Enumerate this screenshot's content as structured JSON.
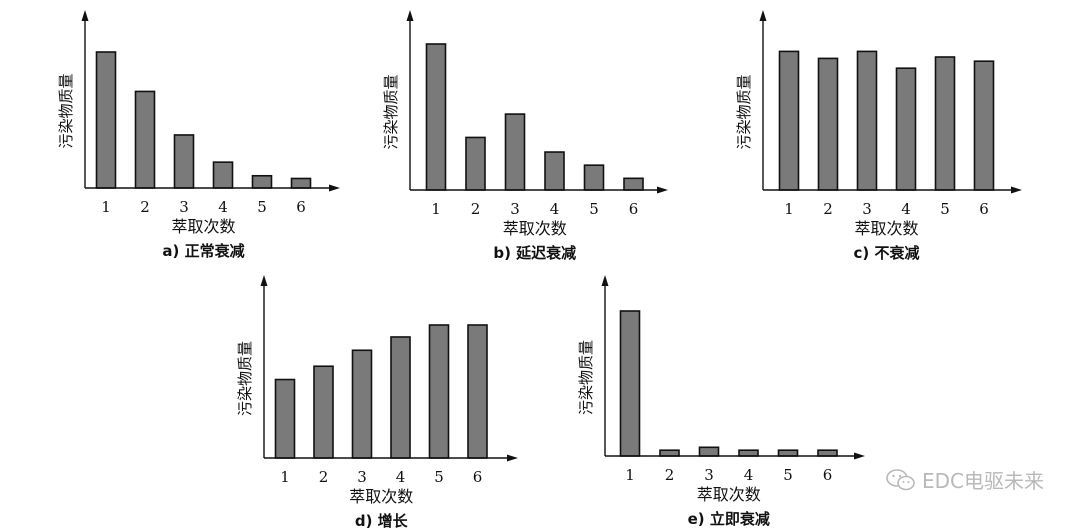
{
  "colors": {
    "bar": "#7a7a7a",
    "axis": "#111111",
    "watermark": "#b9b9b9"
  },
  "watermark": {
    "icon": "wechat-icon",
    "text": "EDC电驱未来"
  },
  "chart_data": [
    {
      "type": "bar",
      "id": "a",
      "caption": "a) 正常衰减",
      "categories": [
        "1",
        "2",
        "3",
        "4",
        "5",
        "6"
      ],
      "values": [
        100,
        71,
        39,
        19,
        9,
        7
      ],
      "xlabel": "萃取次数",
      "ylabel": "污染物质量",
      "ylim": [
        0,
        100
      ],
      "grid": false,
      "legend": "none",
      "y_ticks": false
    },
    {
      "type": "bar",
      "id": "b",
      "caption": "b) 延迟衰减",
      "categories": [
        "1",
        "2",
        "3",
        "4",
        "5",
        "6"
      ],
      "values": [
        100,
        36,
        52,
        26,
        17,
        8
      ],
      "xlabel": "萃取次数",
      "ylabel": "污染物质量",
      "ylim": [
        0,
        100
      ],
      "grid": false,
      "legend": "none",
      "y_ticks": false
    },
    {
      "type": "bar",
      "id": "c",
      "caption": "c) 不衰减",
      "categories": [
        "1",
        "2",
        "3",
        "4",
        "5",
        "6"
      ],
      "values": [
        99,
        94,
        99,
        87,
        95,
        92
      ],
      "xlabel": "萃取次数",
      "ylabel": "污染物质量",
      "ylim": [
        0,
        100
      ],
      "grid": false,
      "legend": "none",
      "y_ticks": false
    },
    {
      "type": "bar",
      "id": "d",
      "caption": "d) 增长",
      "categories": [
        "1",
        "2",
        "3",
        "4",
        "5",
        "6"
      ],
      "values": [
        59,
        69,
        81,
        91,
        100,
        100
      ],
      "xlabel": "萃取次数",
      "ylabel": "污染物质量",
      "ylim": [
        0,
        100
      ],
      "grid": false,
      "legend": "none",
      "y_ticks": false
    },
    {
      "type": "bar",
      "id": "e",
      "caption": "e) 立即衰减",
      "categories": [
        "1",
        "2",
        "3",
        "4",
        "5",
        "6"
      ],
      "values": [
        100,
        4,
        6,
        4,
        4,
        4
      ],
      "xlabel": "萃取次数",
      "ylabel": "污染物质量",
      "ylim": [
        0,
        100
      ],
      "grid": false,
      "legend": "none",
      "y_ticks": false
    }
  ]
}
